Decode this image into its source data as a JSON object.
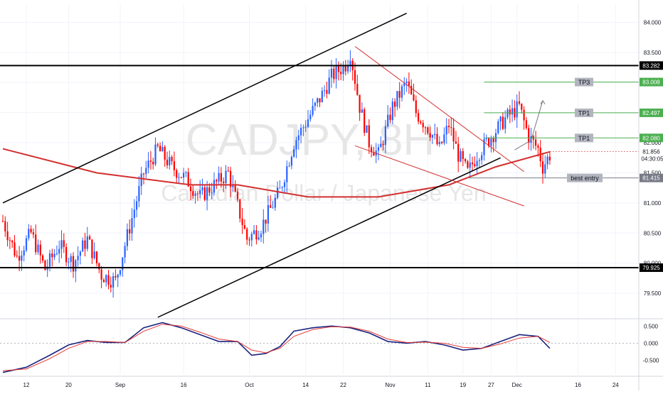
{
  "chart_data": [
    {
      "type": "candlestick",
      "watermark": {
        "symbol": "CADJPY, 8H",
        "name": "Canadian Dollar / Japanese Yen"
      },
      "colors": {
        "up": "#2962ff",
        "down": "#ff0000",
        "ma": "#d32f2f",
        "trendline": "#000000",
        "channel": "#d32f2f",
        "tp": "#4caf50",
        "grid": "#f0f3fa"
      },
      "ylim": [
        79.1,
        84.3
      ],
      "y_ticks": [
        79.5,
        80.0,
        80.5,
        81.0,
        81.5,
        82.0,
        82.5,
        83.0,
        83.5,
        84.0
      ],
      "y_tick_labels": [
        "79.500",
        "80.000",
        "80.500",
        "81.000",
        "81.500",
        "82.000",
        "82.500",
        "83.000",
        "83.500",
        "84.000"
      ],
      "candle_count": 240,
      "close_path": [
        [
          0,
          80.7
        ],
        [
          6,
          80.1
        ],
        [
          12,
          80.5
        ],
        [
          18,
          79.9
        ],
        [
          24,
          80.3
        ],
        [
          30,
          80.0
        ],
        [
          36,
          80.4
        ],
        [
          42,
          79.8
        ],
        [
          48,
          79.7
        ],
        [
          54,
          80.6
        ],
        [
          60,
          81.5
        ],
        [
          66,
          81.9
        ],
        [
          72,
          81.6
        ],
        [
          78,
          81.4
        ],
        [
          84,
          81.1
        ],
        [
          90,
          81.3
        ],
        [
          96,
          81.5
        ],
        [
          104,
          80.4
        ],
        [
          110,
          80.6
        ],
        [
          118,
          81.2
        ],
        [
          124,
          82.0
        ],
        [
          130,
          82.4
        ],
        [
          136,
          82.8
        ],
        [
          140,
          83.1
        ],
        [
          146,
          83.3
        ],
        [
          148,
          83.5
        ],
        [
          152,
          82.6
        ],
        [
          156,
          82.0
        ],
        [
          160,
          81.8
        ],
        [
          166,
          82.6
        ],
        [
          172,
          83.0
        ],
        [
          176,
          82.5
        ],
        [
          182,
          82.2
        ],
        [
          186,
          81.9
        ],
        [
          190,
          82.3
        ],
        [
          194,
          81.8
        ],
        [
          198,
          81.5
        ],
        [
          202,
          81.8
        ],
        [
          208,
          82.1
        ],
        [
          214,
          82.4
        ],
        [
          220,
          82.6
        ],
        [
          224,
          82.1
        ],
        [
          228,
          81.9
        ],
        [
          230,
          81.6
        ],
        [
          233,
          81.8
        ]
      ],
      "moving_average": [
        [
          0,
          81.9
        ],
        [
          40,
          81.5
        ],
        [
          80,
          81.3
        ],
        [
          100,
          81.3
        ],
        [
          130,
          81.1
        ],
        [
          160,
          81.1
        ],
        [
          190,
          81.3
        ],
        [
          210,
          81.6
        ],
        [
          233,
          81.85
        ]
      ],
      "horizontal_levels": [
        {
          "value": 83.282,
          "label": "83.282",
          "style": "black"
        },
        {
          "value": 79.925,
          "label": "79.925",
          "style": "black"
        }
      ],
      "tp_levels": [
        {
          "value": 83.008,
          "label": "83.008",
          "tag": "TP3"
        },
        {
          "value": 82.497,
          "label": "82.497",
          "tag": "TP1"
        },
        {
          "value": 82.08,
          "label": "82.080",
          "tag": "TP1"
        }
      ],
      "entry_level": {
        "value": 81.415,
        "label": "81.415",
        "tag": "best entry"
      },
      "last_price": {
        "value": 81.856,
        "label": "81.856",
        "countdown": "04:30:05"
      },
      "trendlines": [
        {
          "from": [
            0,
            81.0
          ],
          "to": [
            172,
            84.15
          ],
          "color": "black"
        },
        {
          "from": [
            66,
            79.1
          ],
          "to": [
            212,
            81.75
          ],
          "color": "black"
        },
        {
          "from": [
            150,
            83.6
          ],
          "to": [
            222,
            81.52
          ],
          "color": "channel"
        },
        {
          "from": [
            150,
            81.95
          ],
          "to": [
            222,
            80.95
          ],
          "color": "channel"
        }
      ],
      "projection_arrow": {
        "points": [
          [
            218,
            81.88
          ],
          [
            225,
            82.04
          ],
          [
            230,
            82.7
          ]
        ]
      },
      "x_tick_labels": [
        {
          "i": 10,
          "label": "12"
        },
        {
          "i": 28,
          "label": "20"
        },
        {
          "i": 50,
          "label": "Sep"
        },
        {
          "i": 77,
          "label": "16"
        },
        {
          "i": 105,
          "label": "Oct"
        },
        {
          "i": 129,
          "label": "14"
        },
        {
          "i": 145,
          "label": "22"
        },
        {
          "i": 165,
          "label": "Nov"
        },
        {
          "i": 181,
          "label": "11"
        },
        {
          "i": 196,
          "label": "19"
        },
        {
          "i": 208,
          "label": "27"
        },
        {
          "i": 219,
          "label": "Dec"
        },
        {
          "i": 245,
          "label": "16"
        },
        {
          "i": 261,
          "label": "24"
        }
      ]
    },
    {
      "type": "line",
      "ylim": [
        -0.9,
        0.65
      ],
      "y_ticks": [
        0.5,
        0.0,
        -0.5
      ],
      "y_tick_labels": [
        "0.500",
        "0.000",
        "-0.500"
      ],
      "series": [
        {
          "color": "#1a237e",
          "values": [
            [
              0,
              -0.85
            ],
            [
              10,
              -0.7
            ],
            [
              20,
              -0.35
            ],
            [
              28,
              -0.05
            ],
            [
              36,
              0.08
            ],
            [
              44,
              0.02
            ],
            [
              52,
              0.02
            ],
            [
              60,
              0.45
            ],
            [
              68,
              0.6
            ],
            [
              76,
              0.45
            ],
            [
              84,
              0.25
            ],
            [
              92,
              0.05
            ],
            [
              100,
              0.05
            ],
            [
              106,
              -0.35
            ],
            [
              112,
              -0.3
            ],
            [
              118,
              -0.1
            ],
            [
              124,
              0.35
            ],
            [
              132,
              0.45
            ],
            [
              140,
              0.5
            ],
            [
              148,
              0.45
            ],
            [
              156,
              0.3
            ],
            [
              164,
              0.05
            ],
            [
              172,
              0.0
            ],
            [
              180,
              0.05
            ],
            [
              188,
              -0.05
            ],
            [
              196,
              -0.2
            ],
            [
              204,
              -0.15
            ],
            [
              212,
              0.05
            ],
            [
              220,
              0.25
            ],
            [
              228,
              0.2
            ],
            [
              233,
              -0.15
            ]
          ]
        },
        {
          "color": "#e53935",
          "values": [
            [
              0,
              -0.8
            ],
            [
              10,
              -0.75
            ],
            [
              20,
              -0.45
            ],
            [
              28,
              -0.15
            ],
            [
              36,
              0.05
            ],
            [
              44,
              0.05
            ],
            [
              52,
              0.02
            ],
            [
              60,
              0.35
            ],
            [
              68,
              0.55
            ],
            [
              76,
              0.5
            ],
            [
              84,
              0.32
            ],
            [
              92,
              0.12
            ],
            [
              100,
              0.05
            ],
            [
              106,
              -0.2
            ],
            [
              112,
              -0.28
            ],
            [
              118,
              -0.15
            ],
            [
              124,
              0.2
            ],
            [
              132,
              0.4
            ],
            [
              140,
              0.48
            ],
            [
              148,
              0.47
            ],
            [
              156,
              0.35
            ],
            [
              164,
              0.12
            ],
            [
              172,
              0.02
            ],
            [
              180,
              0.03
            ],
            [
              188,
              0.0
            ],
            [
              196,
              -0.12
            ],
            [
              204,
              -0.15
            ],
            [
              212,
              -0.02
            ],
            [
              220,
              0.15
            ],
            [
              228,
              0.2
            ],
            [
              233,
              0.02
            ]
          ]
        }
      ]
    }
  ]
}
